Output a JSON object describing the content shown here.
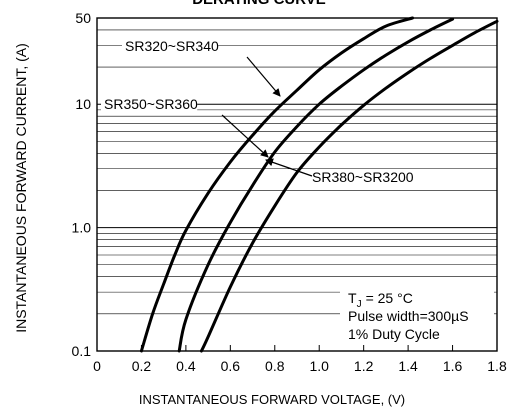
{
  "chart_data": {
    "type": "line",
    "title": "DERATING CURVE",
    "xlabel": "INSTANTANEOUS FORWARD VOLTAGE, (V)",
    "ylabel": "INSTANTANEOUS FORWARD CURRENT, (A)",
    "x_scale": "linear",
    "y_scale": "log",
    "xlim": [
      0,
      1.8
    ],
    "ylim": [
      0.1,
      50
    ],
    "x_ticks": [
      "0",
      "0.2",
      "0.4",
      "0.6",
      "0.8",
      "1.0",
      "1.2",
      "1.4",
      "1.6",
      "1.8"
    ],
    "y_ticks": [
      "0.1",
      "1.0",
      "10",
      "50"
    ],
    "grid": true,
    "series": [
      {
        "name": "SR320~SR340",
        "x": [
          0.2,
          0.25,
          0.3,
          0.35,
          0.4,
          0.5,
          0.6,
          0.7,
          0.8,
          0.9,
          1.0,
          1.1,
          1.2,
          1.3,
          1.42
        ],
        "y": [
          0.1,
          0.2,
          0.35,
          0.6,
          0.95,
          1.9,
          3.4,
          5.6,
          8.8,
          13,
          19,
          26,
          34,
          43,
          50
        ]
      },
      {
        "name": "SR350~SR360",
        "x": [
          0.37,
          0.4,
          0.5,
          0.6,
          0.7,
          0.8,
          0.9,
          1.0,
          1.1,
          1.2,
          1.3,
          1.4,
          1.5,
          1.6
        ],
        "y": [
          0.1,
          0.18,
          0.5,
          1.1,
          2.2,
          4.1,
          6.6,
          10,
          14,
          19,
          25,
          32,
          40,
          49
        ]
      },
      {
        "name": "SR380~SR3200",
        "x": [
          0.47,
          0.5,
          0.6,
          0.7,
          0.8,
          0.9,
          1.0,
          1.1,
          1.2,
          1.3,
          1.4,
          1.5,
          1.6,
          1.7,
          1.8
        ],
        "y": [
          0.1,
          0.13,
          0.33,
          0.75,
          1.5,
          2.8,
          4.5,
          6.8,
          9.8,
          13.5,
          18,
          23.5,
          30,
          38,
          47
        ]
      }
    ],
    "annotations": {
      "temperature_prefix": "T",
      "temperature_sub": "J",
      "temperature_value": "= 25 °C",
      "pulse_width": "Pulse width=300µS",
      "duty_cycle": "1% Duty Cycle"
    }
  }
}
